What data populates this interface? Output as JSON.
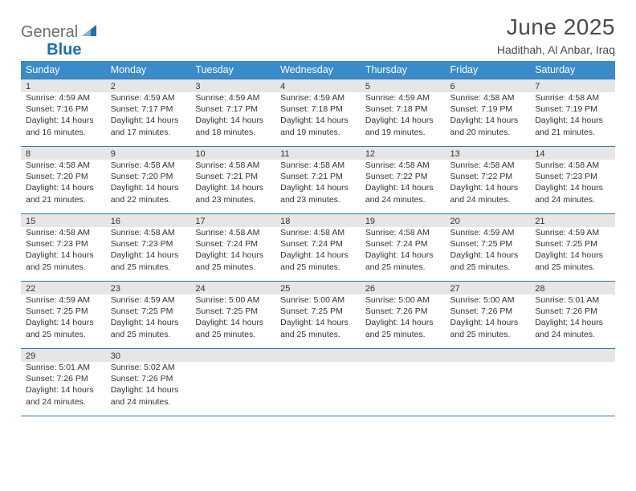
{
  "brand": {
    "word1": "General",
    "word2": "Blue"
  },
  "title": "June 2025",
  "location": "Hadithah, Al Anbar, Iraq",
  "colors": {
    "header_bg": "#3a8bca",
    "border": "#2f77b5",
    "band": "#e6e6e6",
    "logo_gray": "#6d6d6d",
    "logo_blue": "#1f6fb2",
    "text": "#333333"
  },
  "day_headers": [
    "Sunday",
    "Monday",
    "Tuesday",
    "Wednesday",
    "Thursday",
    "Friday",
    "Saturday"
  ],
  "weeks": [
    [
      {
        "n": "1",
        "sr": "4:59 AM",
        "ss": "7:16 PM",
        "dl": "14 hours and 16 minutes."
      },
      {
        "n": "2",
        "sr": "4:59 AM",
        "ss": "7:17 PM",
        "dl": "14 hours and 17 minutes."
      },
      {
        "n": "3",
        "sr": "4:59 AM",
        "ss": "7:17 PM",
        "dl": "14 hours and 18 minutes."
      },
      {
        "n": "4",
        "sr": "4:59 AM",
        "ss": "7:18 PM",
        "dl": "14 hours and 19 minutes."
      },
      {
        "n": "5",
        "sr": "4:59 AM",
        "ss": "7:18 PM",
        "dl": "14 hours and 19 minutes."
      },
      {
        "n": "6",
        "sr": "4:58 AM",
        "ss": "7:19 PM",
        "dl": "14 hours and 20 minutes."
      },
      {
        "n": "7",
        "sr": "4:58 AM",
        "ss": "7:19 PM",
        "dl": "14 hours and 21 minutes."
      }
    ],
    [
      {
        "n": "8",
        "sr": "4:58 AM",
        "ss": "7:20 PM",
        "dl": "14 hours and 21 minutes."
      },
      {
        "n": "9",
        "sr": "4:58 AM",
        "ss": "7:20 PM",
        "dl": "14 hours and 22 minutes."
      },
      {
        "n": "10",
        "sr": "4:58 AM",
        "ss": "7:21 PM",
        "dl": "14 hours and 23 minutes."
      },
      {
        "n": "11",
        "sr": "4:58 AM",
        "ss": "7:21 PM",
        "dl": "14 hours and 23 minutes."
      },
      {
        "n": "12",
        "sr": "4:58 AM",
        "ss": "7:22 PM",
        "dl": "14 hours and 24 minutes."
      },
      {
        "n": "13",
        "sr": "4:58 AM",
        "ss": "7:22 PM",
        "dl": "14 hours and 24 minutes."
      },
      {
        "n": "14",
        "sr": "4:58 AM",
        "ss": "7:23 PM",
        "dl": "14 hours and 24 minutes."
      }
    ],
    [
      {
        "n": "15",
        "sr": "4:58 AM",
        "ss": "7:23 PM",
        "dl": "14 hours and 25 minutes."
      },
      {
        "n": "16",
        "sr": "4:58 AM",
        "ss": "7:23 PM",
        "dl": "14 hours and 25 minutes."
      },
      {
        "n": "17",
        "sr": "4:58 AM",
        "ss": "7:24 PM",
        "dl": "14 hours and 25 minutes."
      },
      {
        "n": "18",
        "sr": "4:58 AM",
        "ss": "7:24 PM",
        "dl": "14 hours and 25 minutes."
      },
      {
        "n": "19",
        "sr": "4:58 AM",
        "ss": "7:24 PM",
        "dl": "14 hours and 25 minutes."
      },
      {
        "n": "20",
        "sr": "4:59 AM",
        "ss": "7:25 PM",
        "dl": "14 hours and 25 minutes."
      },
      {
        "n": "21",
        "sr": "4:59 AM",
        "ss": "7:25 PM",
        "dl": "14 hours and 25 minutes."
      }
    ],
    [
      {
        "n": "22",
        "sr": "4:59 AM",
        "ss": "7:25 PM",
        "dl": "14 hours and 25 minutes."
      },
      {
        "n": "23",
        "sr": "4:59 AM",
        "ss": "7:25 PM",
        "dl": "14 hours and 25 minutes."
      },
      {
        "n": "24",
        "sr": "5:00 AM",
        "ss": "7:25 PM",
        "dl": "14 hours and 25 minutes."
      },
      {
        "n": "25",
        "sr": "5:00 AM",
        "ss": "7:25 PM",
        "dl": "14 hours and 25 minutes."
      },
      {
        "n": "26",
        "sr": "5:00 AM",
        "ss": "7:26 PM",
        "dl": "14 hours and 25 minutes."
      },
      {
        "n": "27",
        "sr": "5:00 AM",
        "ss": "7:26 PM",
        "dl": "14 hours and 25 minutes."
      },
      {
        "n": "28",
        "sr": "5:01 AM",
        "ss": "7:26 PM",
        "dl": "14 hours and 24 minutes."
      }
    ],
    [
      {
        "n": "29",
        "sr": "5:01 AM",
        "ss": "7:26 PM",
        "dl": "14 hours and 24 minutes."
      },
      {
        "n": "30",
        "sr": "5:02 AM",
        "ss": "7:26 PM",
        "dl": "14 hours and 24 minutes."
      },
      null,
      null,
      null,
      null,
      null
    ]
  ],
  "labels": {
    "sunrise": "Sunrise:",
    "sunset": "Sunset:",
    "daylight": "Daylight:"
  }
}
